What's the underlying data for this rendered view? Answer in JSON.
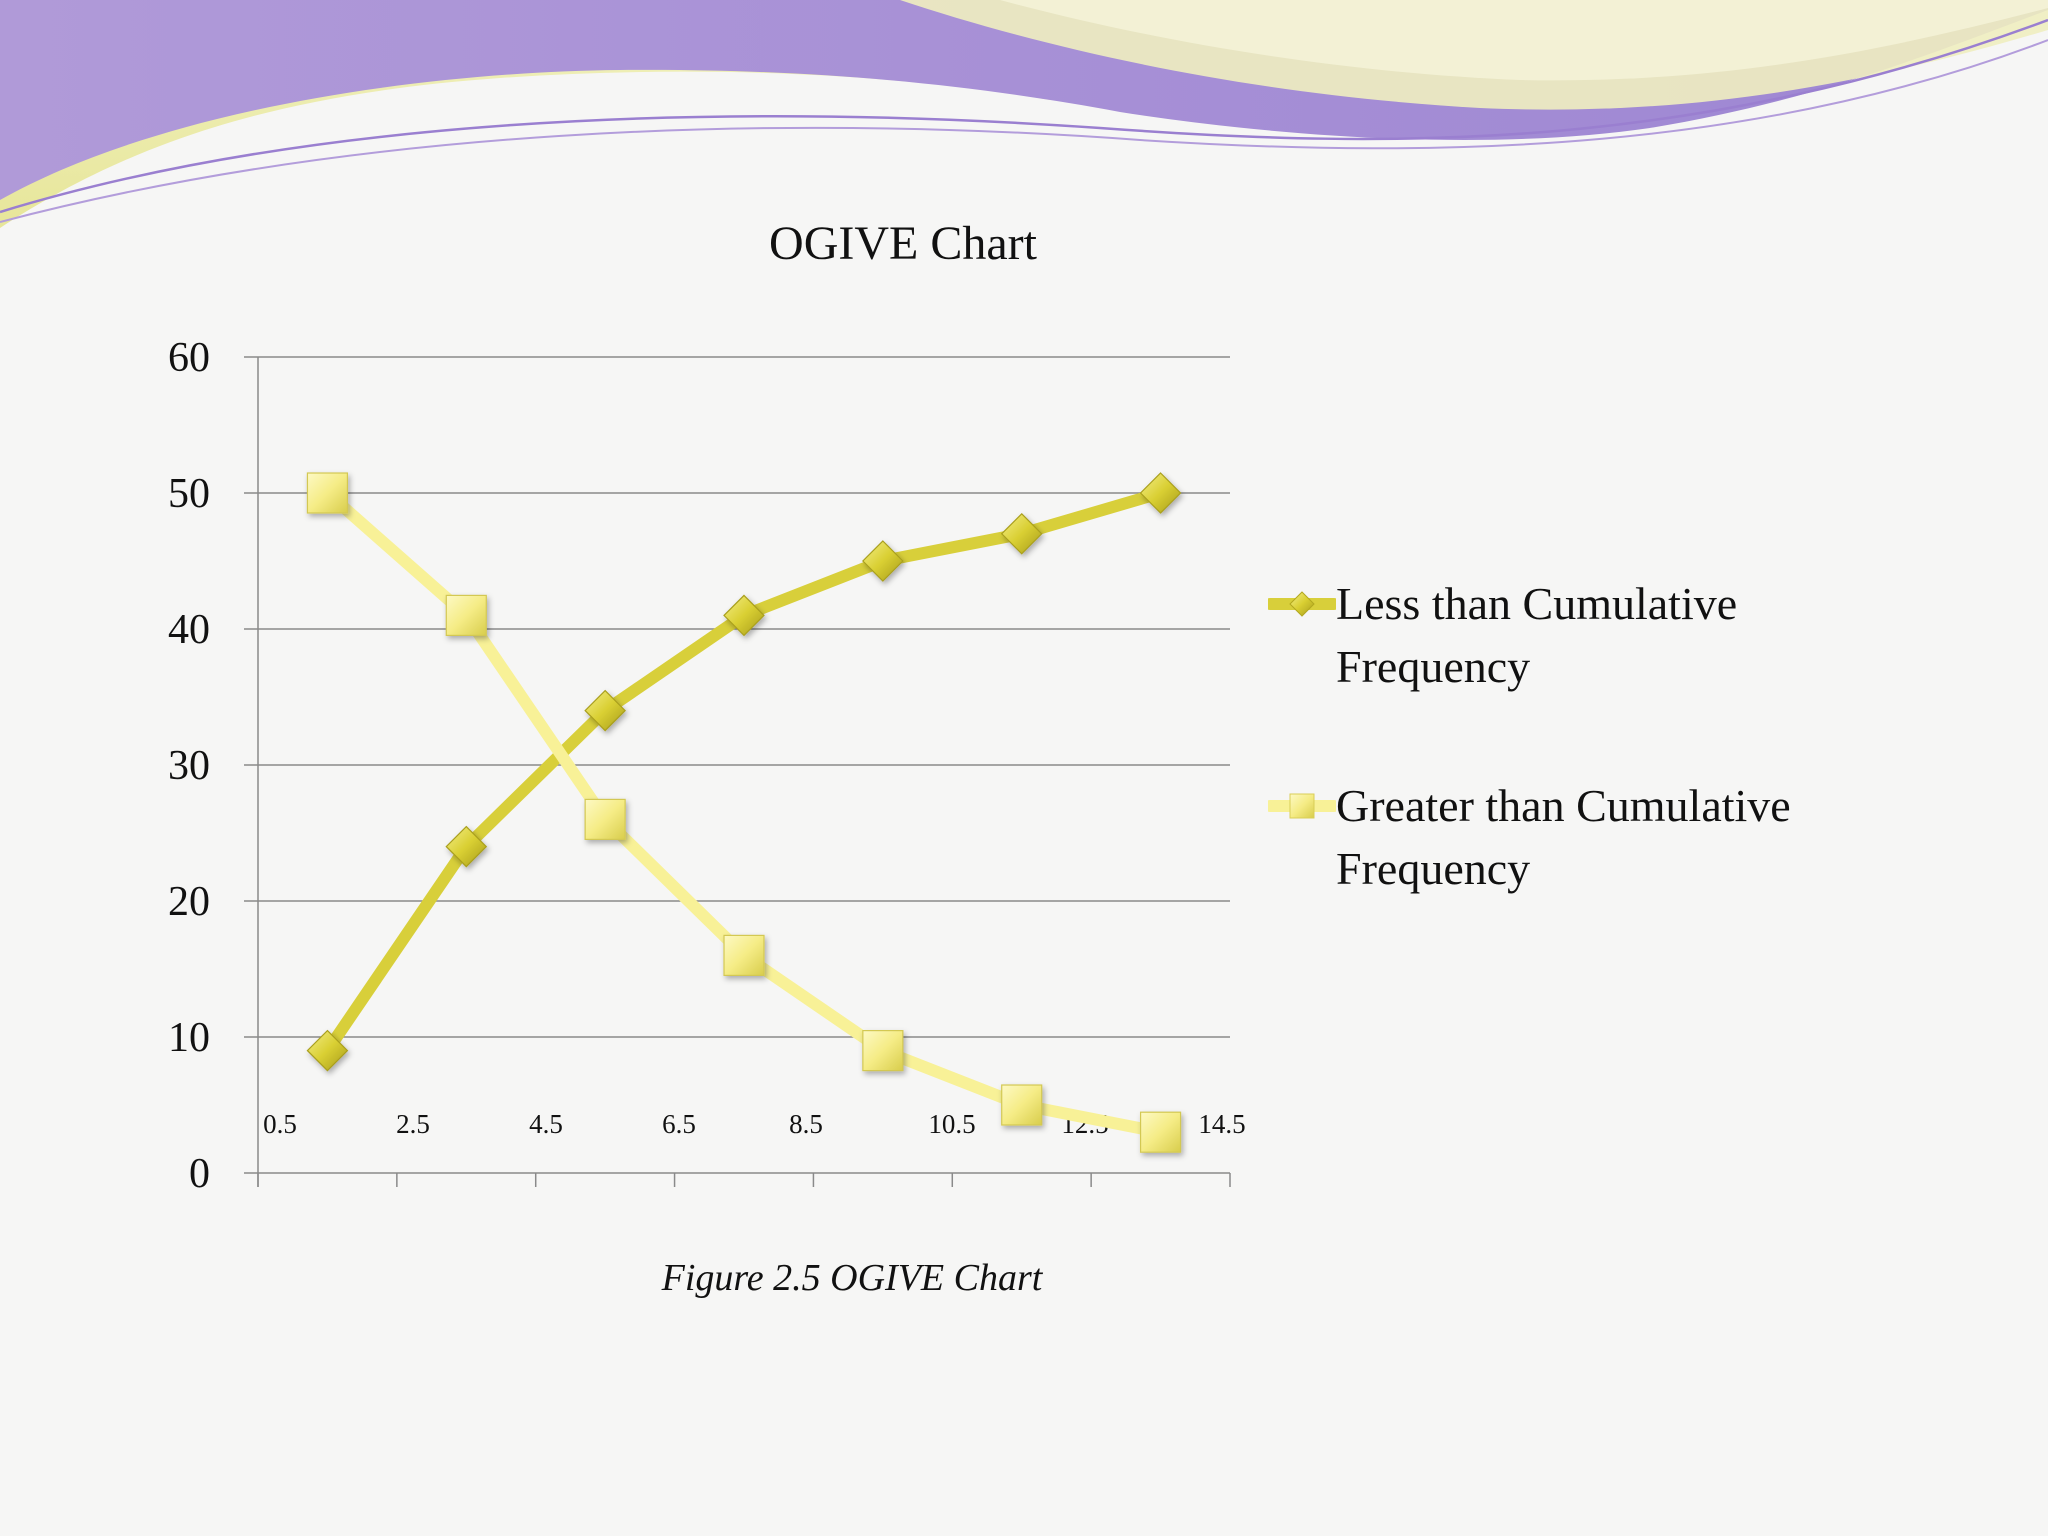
{
  "slide": {
    "title": "OGIVE Chart",
    "caption": "Figure 2.5 OGIVE Chart"
  },
  "colors": {
    "less_than": "#d8cf3a",
    "greater_than": "#f8f197",
    "gridline": "#8a8a8a",
    "banner_purple": "#a98fd8",
    "banner_yellow": "#eeeeb0"
  },
  "chart_data": {
    "type": "line",
    "title": "OGIVE Chart",
    "xlabel": "",
    "ylabel": "",
    "ylim": [
      0,
      60
    ],
    "yticks": [
      0,
      10,
      20,
      30,
      40,
      50,
      60
    ],
    "x_tick_labels": [
      "0.5",
      "2.5",
      "4.5",
      "6.5",
      "8.5",
      "10.5",
      "12.5",
      "14.5"
    ],
    "x": [
      1.5,
      3.5,
      5.5,
      7.5,
      9.5,
      11.5,
      13.5
    ],
    "xlim": [
      0.5,
      14.5
    ],
    "grid": true,
    "legend": "right",
    "series": [
      {
        "name": "Less than Cumulative Frequency",
        "marker": "diamond",
        "values": [
          9,
          24,
          34,
          41,
          45,
          47,
          50
        ]
      },
      {
        "name": "Greater than Cumulative Frequency",
        "marker": "square",
        "values": [
          50,
          41,
          26,
          16,
          9,
          5,
          3
        ]
      }
    ]
  }
}
